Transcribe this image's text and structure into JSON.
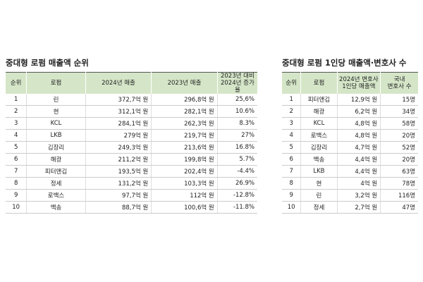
{
  "left": {
    "title": "중대형 로펌 매출액 순위",
    "header": [
      [
        "순위"
      ],
      [
        "로펌"
      ],
      [
        "2024년 매출"
      ],
      [
        "2023년 매출"
      ],
      [
        "2023년 대비",
        "2024년 증가율"
      ]
    ],
    "rows": [
      [
        "1",
        "린",
        "372,7억 원",
        "296,8억 원",
        "25,6%"
      ],
      [
        "2",
        "현",
        "312,1억 원",
        "282,1억 원",
        "10.6%"
      ],
      [
        "3",
        "KCL",
        "284,1억 원",
        "262,3억 원",
        "8.3%"
      ],
      [
        "4",
        "LKB",
        "279억 원",
        "219,7억 원",
        "27%"
      ],
      [
        "5",
        "김장리",
        "249,3억 원",
        "213,6억 원",
        "16.8%"
      ],
      [
        "6",
        "해광",
        "211,2억 원",
        "199,8억 원",
        "5.7%"
      ],
      [
        "7",
        "피터앤김",
        "193,5억 원",
        "202,4억 원",
        "-4.4%"
      ],
      [
        "8",
        "정세",
        "131,2억 원",
        "103,3억 원",
        "26.9%"
      ],
      [
        "9",
        "로백스",
        "97,7억 원",
        "112억 원",
        "-12.8%"
      ],
      [
        "10",
        "백송",
        "88,7억 원",
        "100,6억 원",
        "-11.8%"
      ]
    ]
  },
  "right": {
    "title": "중대형 로펌 1인당 매출액·변호사 수",
    "header": [
      [
        "순위"
      ],
      [
        "로펌"
      ],
      [
        "2024년 변호사",
        "1인당 매출액"
      ],
      [
        "국내",
        "변호사 수"
      ]
    ],
    "rows": [
      [
        "1",
        "피터앤김",
        "12,9억 원",
        "15명"
      ],
      [
        "2",
        "해광",
        "6,2억 원",
        "34명"
      ],
      [
        "3",
        "KCL",
        "4,8억 원",
        "58명"
      ],
      [
        "4",
        "로백스",
        "4,8억 원",
        "20명"
      ],
      [
        "5",
        "김장리",
        "4,7억 원",
        "52명"
      ],
      [
        "6",
        "백송",
        "4,4억 원",
        "20명"
      ],
      [
        "7",
        "LKB",
        "4,4억 원",
        "63명"
      ],
      [
        "8",
        "현",
        "4억 원",
        "78명"
      ],
      [
        "9",
        "린",
        "3,2억 원",
        "116명"
      ],
      [
        "10",
        "정세",
        "2,7억 원",
        "47명"
      ]
    ]
  }
}
